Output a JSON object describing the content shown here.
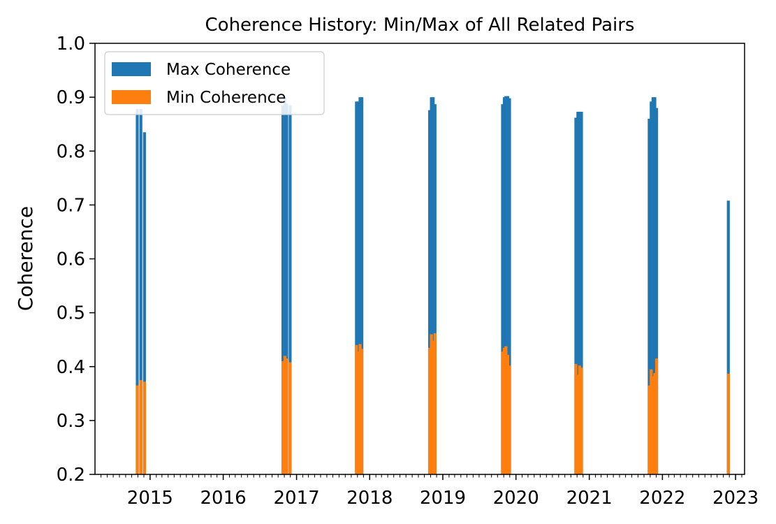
{
  "chart_data": {
    "type": "bar",
    "title": "Coherence History: Min/Max of All Related Pairs",
    "xlabel": "",
    "ylabel": "Coherence",
    "ylim": [
      0.2,
      1.0
    ],
    "yticks": [
      "0.2",
      "0.3",
      "0.4",
      "0.5",
      "0.6",
      "0.7",
      "0.8",
      "0.9",
      "1.0"
    ],
    "xlim": [
      "2014-04-01",
      "2023-02-15"
    ],
    "xticks": [
      {
        "label": "2015",
        "date": "2015-01-01"
      },
      {
        "label": "2016",
        "date": "2016-01-01"
      },
      {
        "label": "2017",
        "date": "2017-01-01"
      },
      {
        "label": "2018",
        "date": "2018-01-01"
      },
      {
        "label": "2019",
        "date": "2019-01-01"
      },
      {
        "label": "2020",
        "date": "2020-01-01"
      },
      {
        "label": "2021",
        "date": "2021-01-01"
      },
      {
        "label": "2022",
        "date": "2022-01-01"
      },
      {
        "label": "2023",
        "date": "2023-01-01"
      }
    ],
    "grid": false,
    "legend_position": "top-left",
    "series": [
      {
        "name": "Max Coherence",
        "color": "#1f77b4",
        "points": [
          {
            "date": "2014-10-29",
            "value": 0.878
          },
          {
            "date": "2014-11-16",
            "value": 0.878
          },
          {
            "date": "2014-12-04",
            "value": 0.835
          },
          {
            "date": "2016-10-25",
            "value": 0.885
          },
          {
            "date": "2016-11-04",
            "value": 0.9
          },
          {
            "date": "2016-11-13",
            "value": 0.888
          },
          {
            "date": "2016-11-30",
            "value": 0.885
          },
          {
            "date": "2017-10-27",
            "value": 0.892
          },
          {
            "date": "2017-11-05",
            "value": 0.892
          },
          {
            "date": "2017-11-14",
            "value": 0.9
          },
          {
            "date": "2017-11-23",
            "value": 0.9
          },
          {
            "date": "2018-10-27",
            "value": 0.876
          },
          {
            "date": "2018-11-05",
            "value": 0.9
          },
          {
            "date": "2018-11-14",
            "value": 0.9
          },
          {
            "date": "2018-11-23",
            "value": 0.887
          },
          {
            "date": "2019-10-26",
            "value": 0.887
          },
          {
            "date": "2019-11-04",
            "value": 0.9
          },
          {
            "date": "2019-11-12",
            "value": 0.902
          },
          {
            "date": "2019-11-21",
            "value": 0.902
          },
          {
            "date": "2019-11-30",
            "value": 0.898
          },
          {
            "date": "2020-10-26",
            "value": 0.862
          },
          {
            "date": "2020-11-05",
            "value": 0.873
          },
          {
            "date": "2020-11-14",
            "value": 0.873
          },
          {
            "date": "2020-11-23",
            "value": 0.873
          },
          {
            "date": "2021-10-27",
            "value": 0.86
          },
          {
            "date": "2021-11-06",
            "value": 0.892
          },
          {
            "date": "2021-11-15",
            "value": 0.9
          },
          {
            "date": "2021-11-24",
            "value": 0.9
          },
          {
            "date": "2021-12-03",
            "value": 0.88
          },
          {
            "date": "2022-11-26",
            "value": 0.708
          }
        ]
      },
      {
        "name": "Min Coherence",
        "color": "#ff7f0e",
        "points": [
          {
            "date": "2014-10-29",
            "value": 0.365
          },
          {
            "date": "2014-11-16",
            "value": 0.375
          },
          {
            "date": "2014-12-04",
            "value": 0.372
          },
          {
            "date": "2016-10-25",
            "value": 0.41
          },
          {
            "date": "2016-11-04",
            "value": 0.42
          },
          {
            "date": "2016-11-13",
            "value": 0.415
          },
          {
            "date": "2016-11-30",
            "value": 0.408
          },
          {
            "date": "2017-10-27",
            "value": 0.44
          },
          {
            "date": "2017-11-05",
            "value": 0.428
          },
          {
            "date": "2017-11-14",
            "value": 0.442
          },
          {
            "date": "2017-11-23",
            "value": 0.433
          },
          {
            "date": "2018-10-27",
            "value": 0.435
          },
          {
            "date": "2018-11-05",
            "value": 0.46
          },
          {
            "date": "2018-11-14",
            "value": 0.448
          },
          {
            "date": "2018-11-23",
            "value": 0.462
          },
          {
            "date": "2019-10-26",
            "value": 0.428
          },
          {
            "date": "2019-11-04",
            "value": 0.435
          },
          {
            "date": "2019-11-12",
            "value": 0.438
          },
          {
            "date": "2019-11-21",
            "value": 0.422
          },
          {
            "date": "2019-11-30",
            "value": 0.402
          },
          {
            "date": "2020-10-26",
            "value": 0.405
          },
          {
            "date": "2020-11-05",
            "value": 0.385
          },
          {
            "date": "2020-11-14",
            "value": 0.402
          },
          {
            "date": "2020-11-23",
            "value": 0.398
          },
          {
            "date": "2021-10-27",
            "value": 0.365
          },
          {
            "date": "2021-11-06",
            "value": 0.395
          },
          {
            "date": "2021-11-15",
            "value": 0.382
          },
          {
            "date": "2021-11-24",
            "value": 0.388
          },
          {
            "date": "2021-12-03",
            "value": 0.415
          },
          {
            "date": "2022-11-26",
            "value": 0.387
          }
        ]
      }
    ]
  }
}
